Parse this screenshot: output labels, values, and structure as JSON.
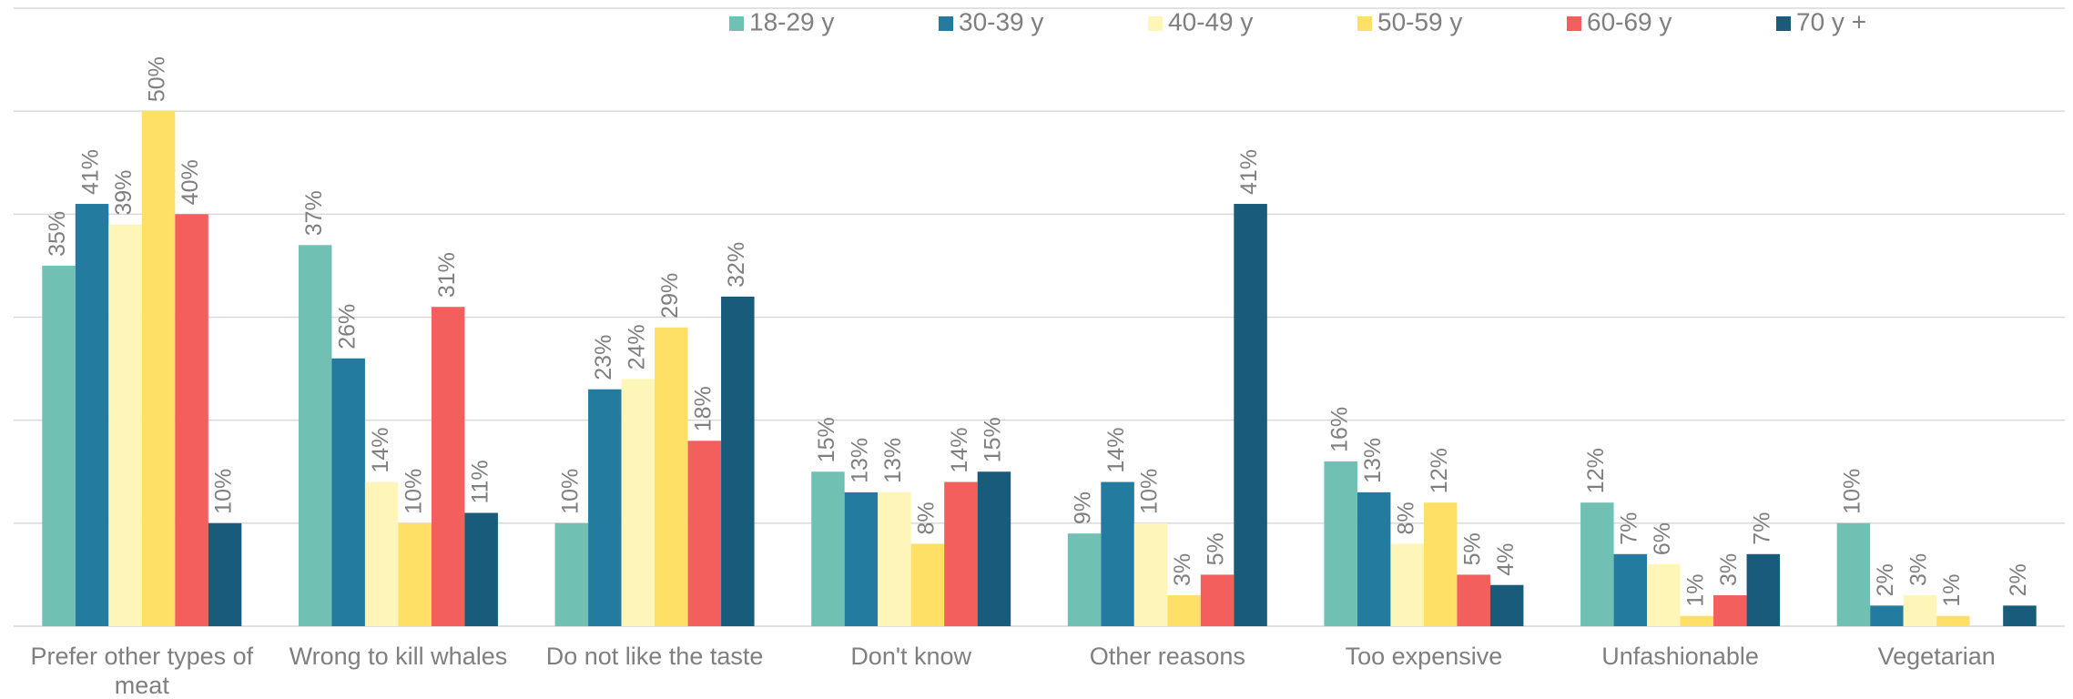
{
  "chart_data": {
    "type": "bar",
    "categories": [
      "Prefer other types of meat",
      "Wrong to kill whales",
      "Do not like the taste",
      "Don't know",
      "Other reasons",
      "Too expensive",
      "Unfashionable",
      "Vegetarian"
    ],
    "series": [
      {
        "name": "18-29 y",
        "color": "#70c1b3",
        "values": [
          35,
          37,
          10,
          15,
          9,
          16,
          12,
          10
        ],
        "value_labels": [
          "35%",
          "37%",
          "10%",
          "15%",
          "9%",
          "16%",
          "12%",
          "10%"
        ]
      },
      {
        "name": "30-39 y",
        "color": "#247ba0",
        "values": [
          41,
          26,
          23,
          13,
          14,
          13,
          7,
          2
        ],
        "value_labels": [
          "41%",
          "26%",
          "23%",
          "13%",
          "14%",
          "13%",
          "7%",
          "2%"
        ]
      },
      {
        "name": "40-49 y",
        "color": "#fdf6b8",
        "values": [
          39,
          14,
          24,
          13,
          10,
          8,
          6,
          3
        ],
        "value_labels": [
          "39%",
          "14%",
          "24%",
          "13%",
          "10%",
          "8%",
          "6%",
          "3%"
        ]
      },
      {
        "name": "50-59 y",
        "color": "#ffe066",
        "values": [
          50,
          10,
          29,
          8,
          3,
          12,
          1,
          1
        ],
        "value_labels": [
          "50%",
          "10%",
          "29%",
          "8%",
          "3%",
          "12%",
          "1%",
          "1%"
        ]
      },
      {
        "name": "60-69 y",
        "color": "#f25f5c",
        "values": [
          40,
          31,
          18,
          14,
          5,
          5,
          3,
          null
        ],
        "value_labels": [
          "40%",
          "31%",
          "18%",
          "14%",
          "5%",
          "5%",
          "3%",
          null
        ]
      },
      {
        "name": "70 y +",
        "color": "#185b7a",
        "values": [
          10,
          11,
          32,
          15,
          41,
          4,
          7,
          2
        ],
        "value_labels": [
          "10%",
          "11%",
          "32%",
          "15%",
          "41%",
          "4%",
          "7%",
          "2%"
        ]
      }
    ],
    "ylim": [
      0,
      60
    ],
    "yticks": [
      0,
      10,
      20,
      30,
      40,
      50,
      60
    ],
    "grid": true,
    "legend": "top"
  }
}
